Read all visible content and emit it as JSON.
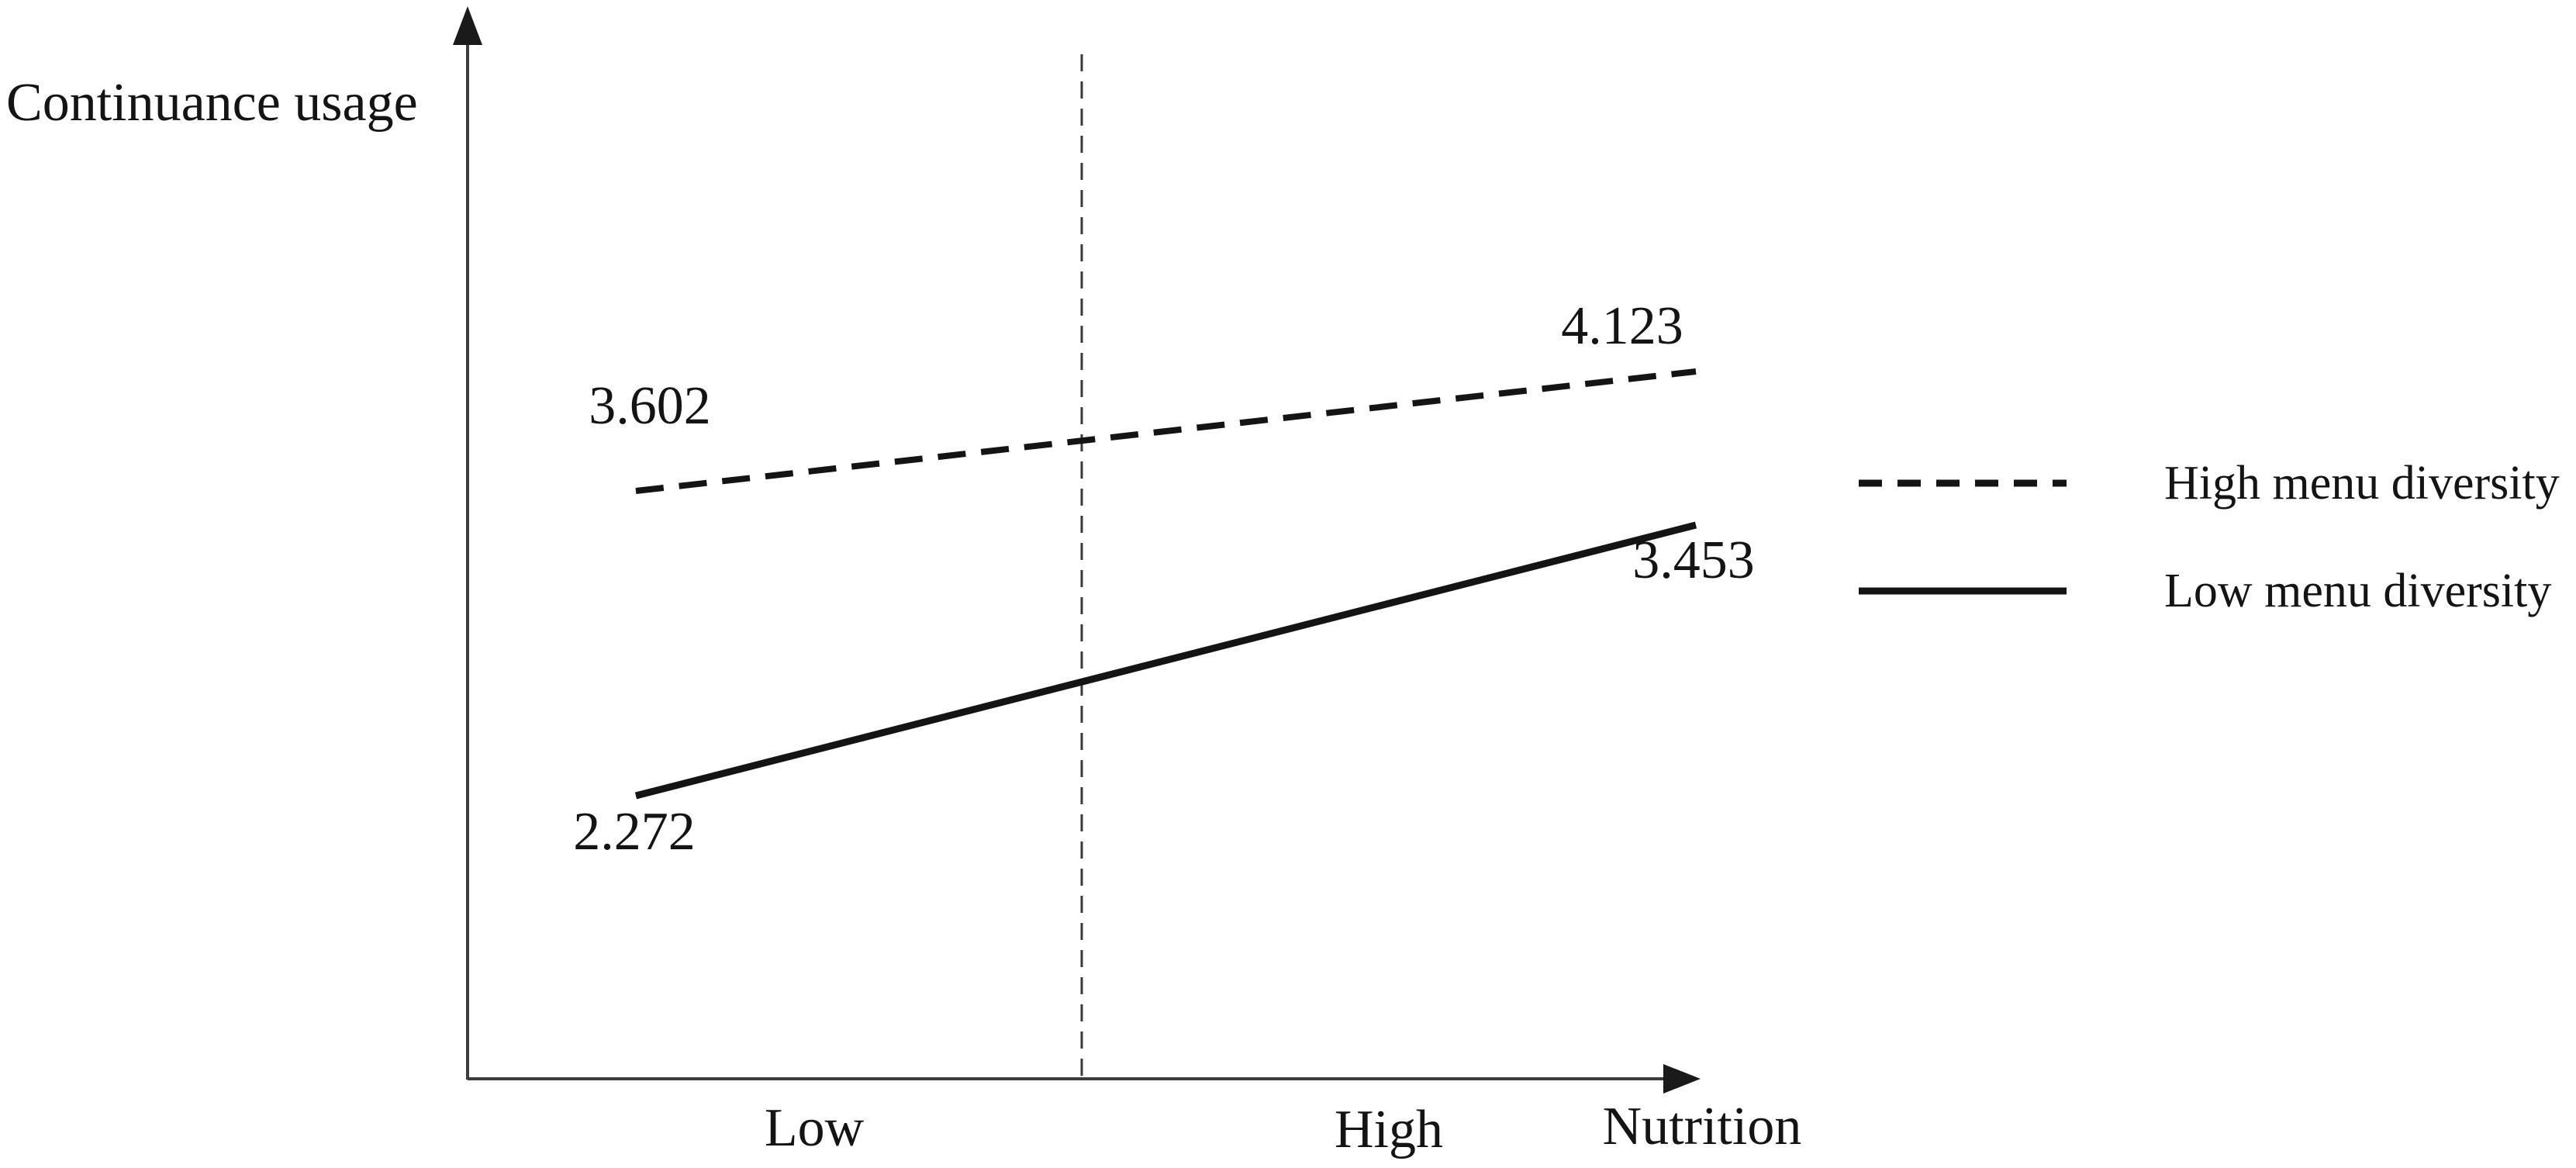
{
  "figure": {
    "background_color": "#ffffff",
    "text_color": "#141414",
    "axis_color": "#3c3c3c",
    "line_color": "#141414"
  },
  "chart_data": {
    "type": "line",
    "title": "",
    "ylabel": "Continuance usage",
    "xlabel": "Nutrition",
    "categories": [
      "Low",
      "High"
    ],
    "series": [
      {
        "name": "High menu diversity",
        "style": "dashed",
        "values": [
          3.602,
          4.123
        ],
        "point_labels": [
          "3.602",
          "4.123"
        ]
      },
      {
        "name": "Low menu diversity",
        "style": "solid",
        "values": [
          2.272,
          3.453
        ],
        "point_labels": [
          "2.272",
          "3.453"
        ]
      }
    ],
    "legend_position": "right",
    "grid": false,
    "axis_numeric_ticks": false,
    "annotations": [
      "vertical dashed divider between Low and High at x-axis midpoint"
    ]
  }
}
